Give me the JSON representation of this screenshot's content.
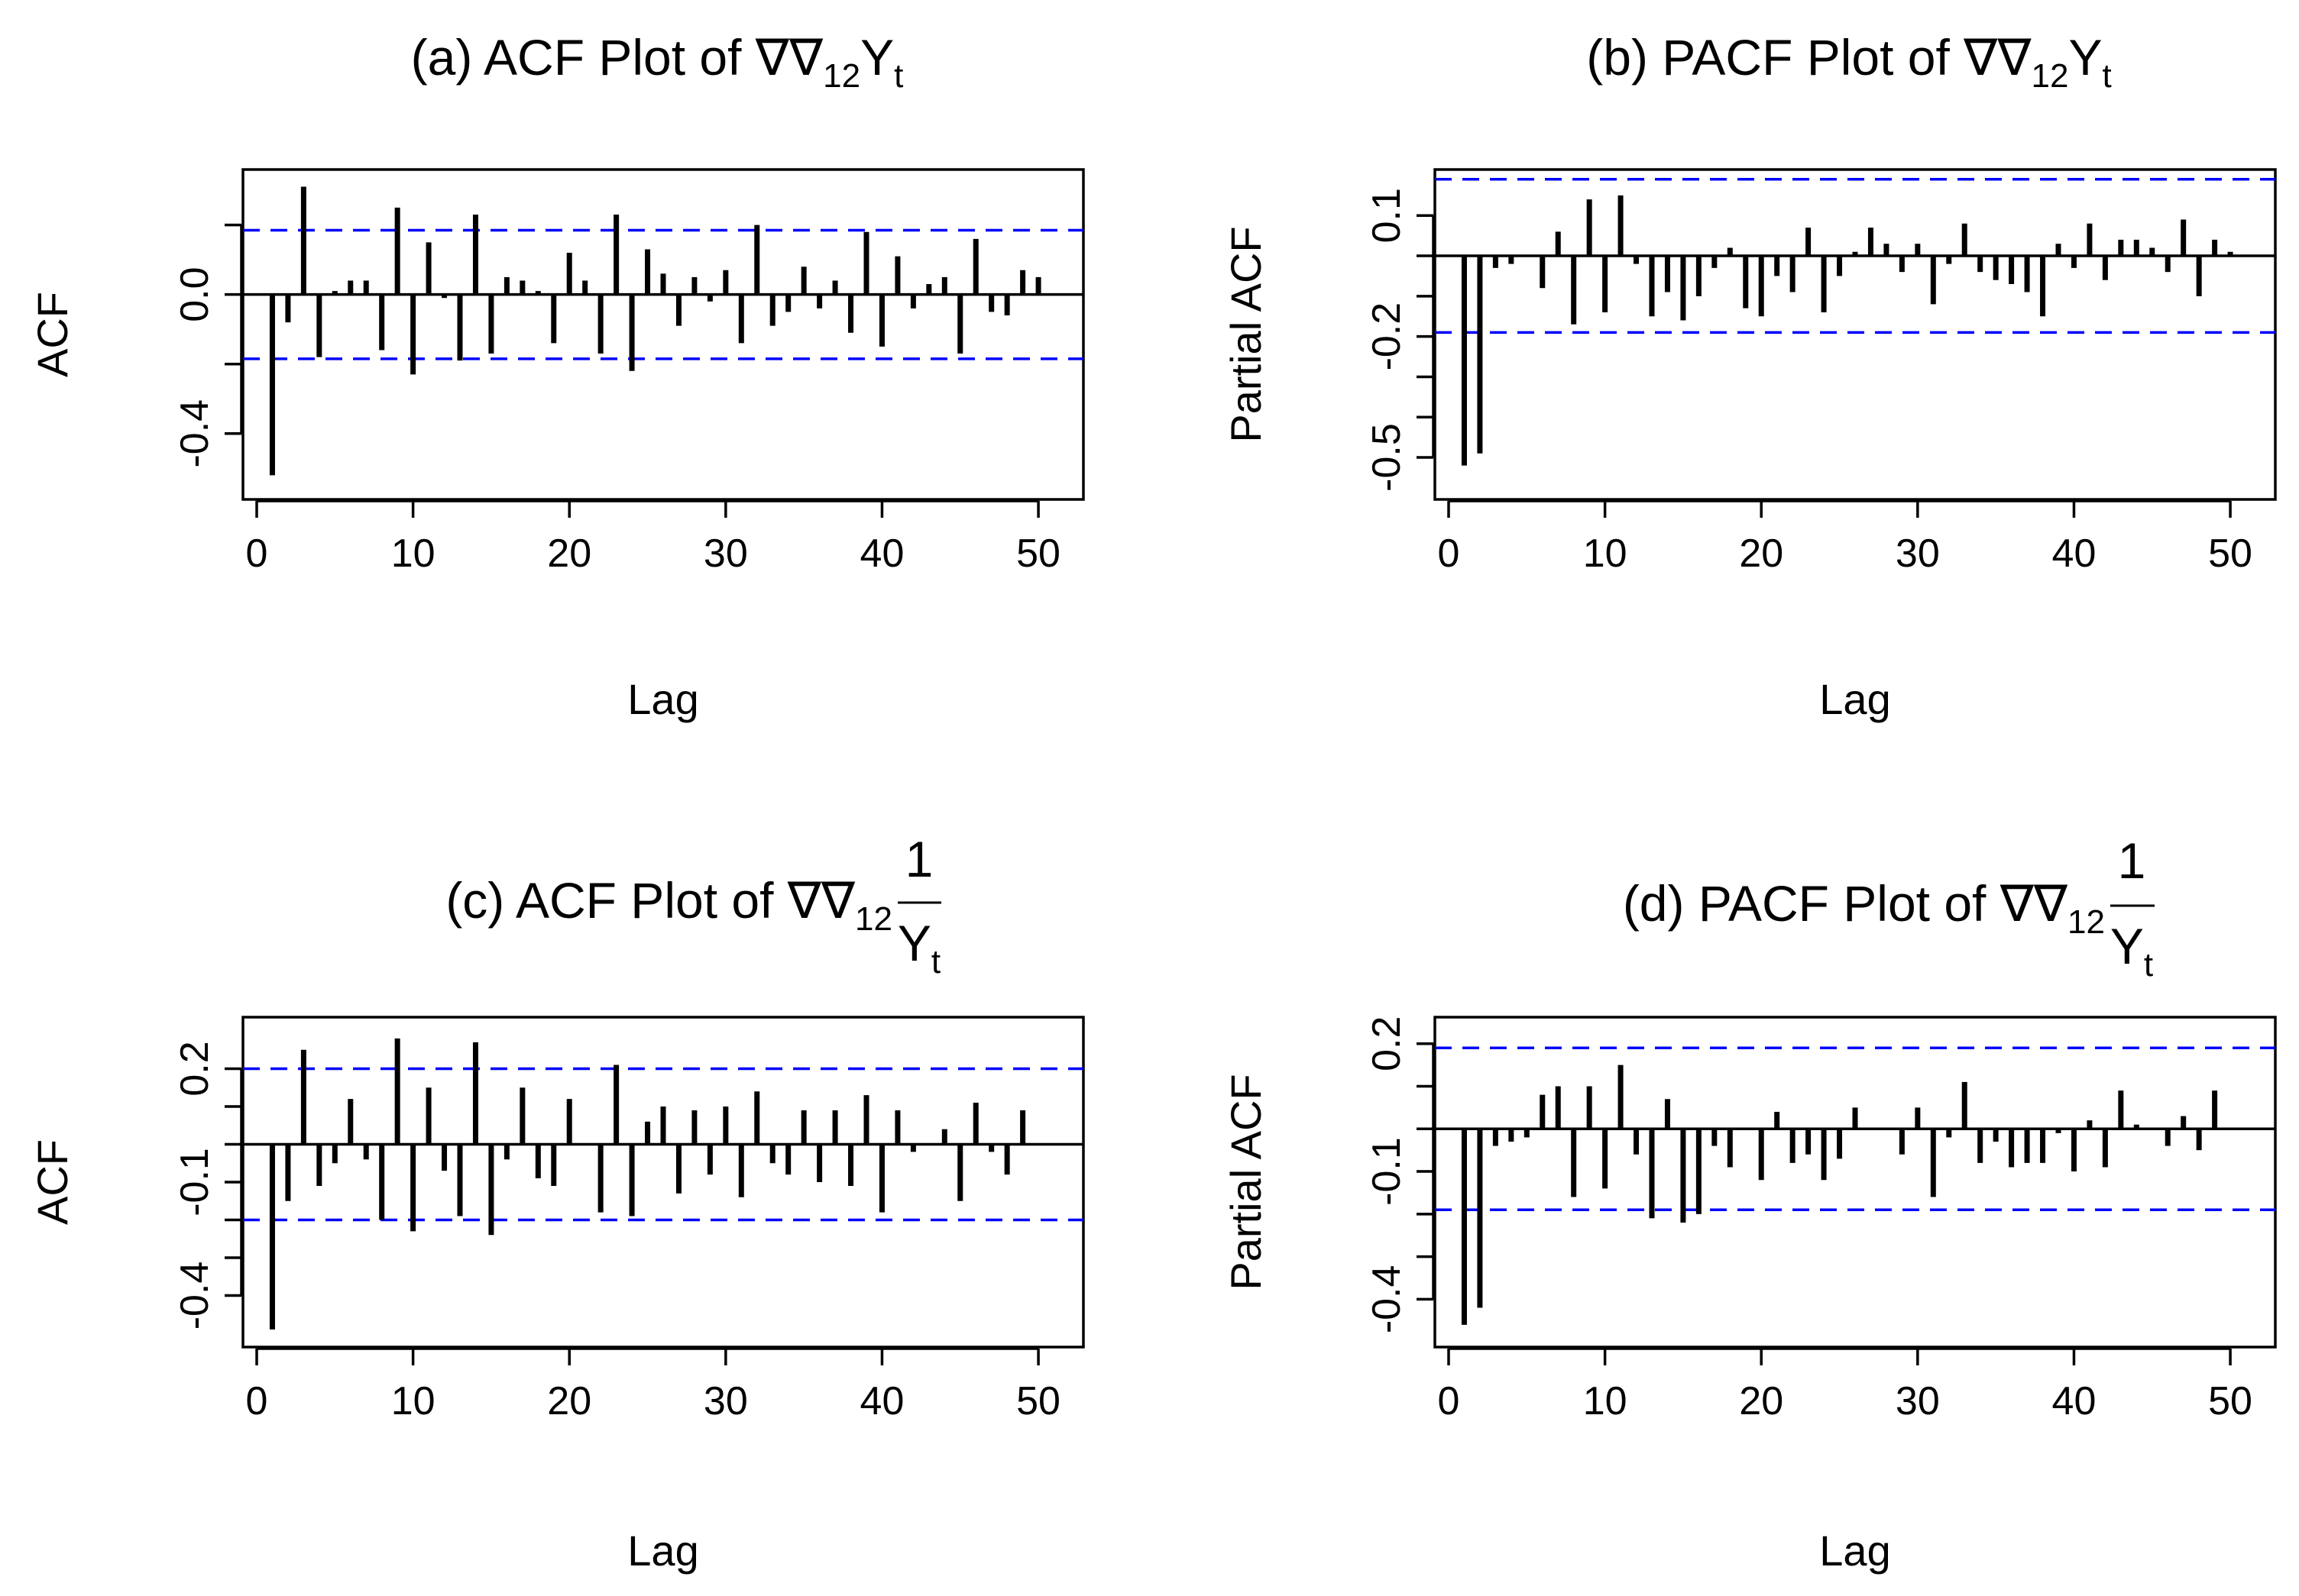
{
  "chart_data": [
    {
      "id": "a",
      "type": "bar",
      "title": "(a) ACF Plot of ∇∇₁₂Yₜ",
      "title_parts": {
        "prefix": "(a) ACF Plot of ∇∇",
        "sub1": "12",
        "main": "Y",
        "sub2": "t",
        "fraction": false
      },
      "xlabel": "Lag",
      "ylabel": "ACF",
      "xlim": [
        0,
        52
      ],
      "ylim": [
        -0.55,
        0.32
      ],
      "xticks": [
        0,
        10,
        20,
        30,
        40,
        50
      ],
      "yticks": [
        -0.4,
        0.0
      ],
      "ytick_labels": [
        "-0.4",
        "0.0"
      ],
      "yticks_minor": [
        -0.2,
        0.2
      ],
      "ci": 0.185,
      "lags": [
        1,
        2,
        3,
        4,
        5,
        6,
        7,
        8,
        9,
        10,
        11,
        12,
        13,
        14,
        15,
        16,
        17,
        18,
        19,
        20,
        21,
        22,
        23,
        24,
        25,
        26,
        27,
        28,
        29,
        30,
        31,
        32,
        33,
        34,
        35,
        36,
        37,
        38,
        39,
        40,
        41,
        42,
        43,
        44,
        45,
        46,
        47,
        48,
        49,
        50
      ],
      "values": [
        -0.52,
        -0.08,
        0.31,
        -0.18,
        0.01,
        0.04,
        0.04,
        -0.16,
        0.25,
        -0.23,
        0.15,
        -0.01,
        -0.19,
        0.23,
        -0.17,
        0.05,
        0.04,
        0.01,
        -0.14,
        0.12,
        0.04,
        -0.17,
        0.23,
        -0.22,
        0.13,
        0.06,
        -0.09,
        0.05,
        -0.02,
        0.07,
        -0.14,
        0.2,
        -0.09,
        -0.05,
        0.08,
        -0.04,
        0.04,
        -0.11,
        0.18,
        -0.15,
        0.11,
        -0.04,
        0.03,
        0.05,
        -0.17,
        0.16,
        -0.05,
        -0.06,
        0.07,
        0.05
      ]
    },
    {
      "id": "b",
      "type": "bar",
      "title": "(b) PACF Plot of ∇∇₁₂Yₜ",
      "title_parts": {
        "prefix": "(b) PACF Plot of ∇∇",
        "sub1": "12",
        "main": "Y",
        "sub2": "t",
        "fraction": false
      },
      "xlabel": "Lag",
      "ylabel": "Partial ACF",
      "xlim": [
        0,
        52
      ],
      "ylim": [
        -0.57,
        0.18
      ],
      "xticks": [
        0,
        10,
        20,
        30,
        40,
        50
      ],
      "yticks": [
        -0.5,
        -0.2,
        0.1
      ],
      "ytick_labels": [
        "-0.5",
        "-0.2",
        "0.1"
      ],
      "yticks_minor": [
        -0.4,
        -0.3,
        -0.1,
        0.0
      ],
      "ci": 0.19,
      "lags": [
        1,
        2,
        3,
        4,
        5,
        6,
        7,
        8,
        9,
        10,
        11,
        12,
        13,
        14,
        15,
        16,
        17,
        18,
        19,
        20,
        21,
        22,
        23,
        24,
        25,
        26,
        27,
        28,
        29,
        30,
        31,
        32,
        33,
        34,
        35,
        36,
        37,
        38,
        39,
        40,
        41,
        42,
        43,
        44,
        45,
        46,
        47,
        48,
        49,
        50
      ],
      "values": [
        -0.52,
        -0.49,
        -0.03,
        -0.02,
        0.0,
        -0.08,
        0.06,
        -0.17,
        0.14,
        -0.14,
        0.15,
        -0.02,
        -0.15,
        -0.09,
        -0.16,
        -0.1,
        -0.03,
        0.02,
        -0.13,
        -0.15,
        -0.05,
        -0.09,
        0.07,
        -0.14,
        -0.05,
        0.01,
        0.07,
        0.03,
        -0.04,
        0.03,
        -0.12,
        -0.02,
        0.08,
        -0.04,
        -0.06,
        -0.07,
        -0.09,
        -0.15,
        0.03,
        -0.03,
        0.08,
        -0.06,
        0.04,
        0.04,
        0.02,
        -0.04,
        0.09,
        -0.1,
        0.04,
        0.01
      ]
    },
    {
      "id": "c",
      "type": "bar",
      "title": "(c) ACF Plot of ∇∇₁₂ 1/Yₜ",
      "title_parts": {
        "prefix": "(c) ACF Plot of ∇∇",
        "sub1": "12",
        "numerator": "1",
        "main": "Y",
        "sub2": "t",
        "fraction": true
      },
      "xlabel": "Lag",
      "ylabel": "ACF",
      "xlim": [
        0,
        52
      ],
      "ylim": [
        -0.5,
        0.3
      ],
      "xticks": [
        0,
        10,
        20,
        30,
        40,
        50
      ],
      "yticks": [
        -0.4,
        -0.1,
        0.2
      ],
      "ytick_labels": [
        "-0.4",
        "-0.1",
        "0.2"
      ],
      "yticks_minor": [
        -0.3,
        -0.2,
        0.0,
        0.1
      ],
      "ci": 0.2,
      "lags": [
        1,
        2,
        3,
        4,
        5,
        6,
        7,
        8,
        9,
        10,
        11,
        12,
        13,
        14,
        15,
        16,
        17,
        18,
        19,
        20,
        21,
        22,
        23,
        24,
        25,
        26,
        27,
        28,
        29,
        30,
        31,
        32,
        33,
        34,
        35,
        36,
        37,
        38,
        39,
        40,
        41,
        42,
        43,
        44,
        45,
        46,
        47,
        48,
        49
      ],
      "values": [
        -0.49,
        -0.15,
        0.25,
        -0.11,
        -0.05,
        0.12,
        -0.04,
        -0.2,
        0.28,
        -0.23,
        0.15,
        -0.07,
        -0.19,
        0.27,
        -0.24,
        -0.04,
        0.15,
        -0.09,
        -0.11,
        0.12,
        0.0,
        -0.18,
        0.21,
        -0.19,
        0.06,
        0.1,
        -0.13,
        0.09,
        -0.08,
        0.1,
        -0.14,
        0.14,
        -0.05,
        -0.08,
        0.09,
        -0.1,
        0.09,
        -0.11,
        0.13,
        -0.18,
        0.09,
        -0.02,
        0.0,
        0.04,
        -0.15,
        0.11,
        -0.02,
        -0.08,
        0.09
      ]
    },
    {
      "id": "d",
      "type": "bar",
      "title": "(d) PACF Plot of ∇∇₁₂ 1/Yₜ",
      "title_parts": {
        "prefix": "(d) PACF Plot of ∇∇",
        "sub1": "12",
        "numerator": "1",
        "main": "Y",
        "sub2": "t",
        "fraction": true
      },
      "xlabel": "Lag",
      "ylabel": "Partial ACF",
      "xlim": [
        0,
        52
      ],
      "ylim": [
        -0.48,
        0.23
      ],
      "xticks": [
        0,
        10,
        20,
        30,
        40,
        50
      ],
      "yticks": [
        -0.4,
        -0.1,
        0.2
      ],
      "ytick_labels": [
        "-0.4",
        "-0.1",
        "0.2"
      ],
      "yticks_minor": [
        -0.3,
        -0.2,
        0.0,
        0.1
      ],
      "ci": 0.19,
      "lags": [
        1,
        2,
        3,
        4,
        5,
        6,
        7,
        8,
        9,
        10,
        11,
        12,
        13,
        14,
        15,
        16,
        17,
        18,
        19,
        20,
        21,
        22,
        23,
        24,
        25,
        26,
        27,
        28,
        29,
        30,
        31,
        32,
        33,
        34,
        35,
        36,
        37,
        38,
        39,
        40,
        41,
        42,
        43,
        44,
        45,
        46,
        47,
        48,
        49
      ],
      "values": [
        -0.46,
        -0.42,
        -0.04,
        -0.03,
        -0.02,
        0.08,
        0.1,
        -0.16,
        0.1,
        -0.14,
        0.15,
        -0.06,
        -0.21,
        0.07,
        -0.22,
        -0.2,
        -0.04,
        -0.09,
        0.0,
        -0.12,
        0.04,
        -0.08,
        -0.06,
        -0.12,
        -0.07,
        0.05,
        0.0,
        0.0,
        -0.06,
        0.05,
        -0.16,
        -0.02,
        0.11,
        -0.08,
        -0.03,
        -0.09,
        -0.08,
        -0.08,
        -0.01,
        -0.1,
        0.02,
        -0.09,
        0.09,
        0.01,
        0.0,
        -0.04,
        0.03,
        -0.05,
        0.09
      ]
    }
  ]
}
